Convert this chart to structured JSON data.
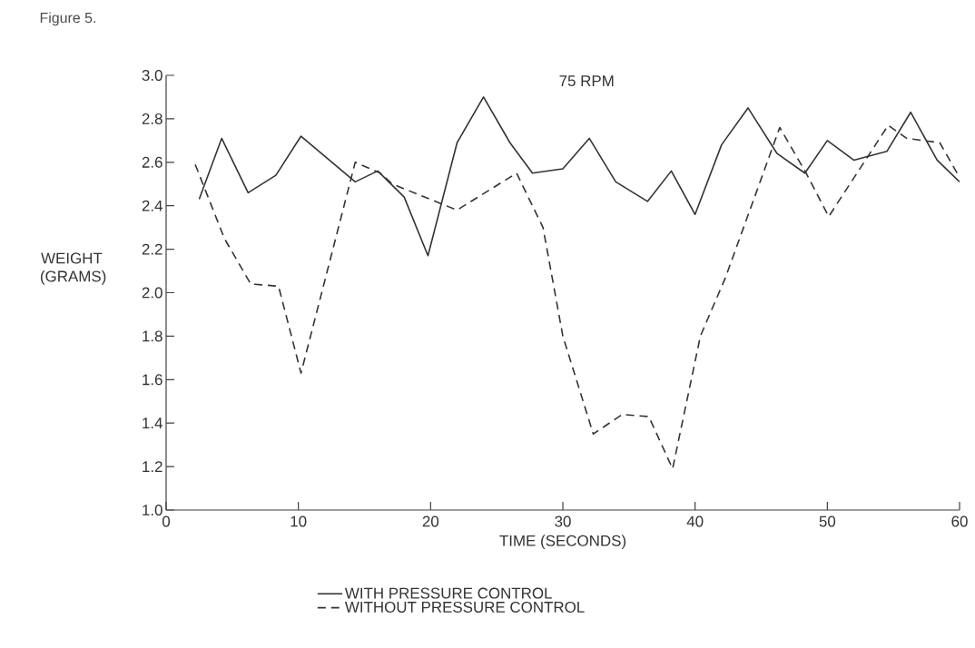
{
  "chart_data": {
    "type": "line",
    "title": "75 RPM",
    "xlabel": "TIME (SECONDS)",
    "ylabel": "WEIGHT (GRAMS)",
    "annotations": [
      "Figure 5."
    ],
    "xlim": [
      0,
      60
    ],
    "xticks": [
      0,
      10,
      20,
      30,
      40,
      50,
      60
    ],
    "ylim": [
      1.0,
      3.0
    ],
    "yticks": [
      {
        "value": 1.0,
        "label": "1.0"
      },
      {
        "value": 1.2,
        "label": "1.2"
      },
      {
        "value": 1.4,
        "label": "1.4"
      },
      {
        "value": 1.6,
        "label": "1.6"
      },
      {
        "value": 1.8,
        "label": "1.8"
      },
      {
        "value": 2.0,
        "label": "2.0"
      },
      {
        "value": 2.2,
        "label": "2.2"
      },
      {
        "value": 2.4,
        "label": "2.4"
      },
      {
        "value": 2.6,
        "label": "2.6"
      },
      {
        "value": 2.8,
        "label": "2.8"
      },
      {
        "value": 3.0,
        "label": "3.0"
      }
    ],
    "legend": "bottom",
    "grid": false,
    "series": [
      {
        "name": "WITH PRESSURE CONTROL",
        "color": "#333333",
        "line_style": "solid",
        "x": [
          2.5,
          4.2,
          6.2,
          8.3,
          10.2,
          14.3,
          16,
          18,
          19.8,
          22,
          24,
          26,
          27.7,
          30,
          32,
          34,
          36.4,
          38.2,
          40,
          42,
          44,
          46.2,
          48.3,
          50,
          52,
          54.5,
          56.3,
          58.3,
          60
        ],
        "values": [
          2.43,
          2.71,
          2.46,
          2.54,
          2.72,
          2.51,
          2.56,
          2.44,
          2.17,
          2.69,
          2.9,
          2.69,
          2.55,
          2.57,
          2.71,
          2.51,
          2.42,
          2.56,
          2.36,
          2.68,
          2.85,
          2.64,
          2.55,
          2.7,
          2.61,
          2.65,
          2.83,
          2.61,
          2.51
        ]
      },
      {
        "name": "WITHOUT PRESSURE CONTROL",
        "color": "#333333",
        "line_style": "dashed",
        "x": [
          2.2,
          4.4,
          6.4,
          8.5,
          10.2,
          14.3,
          16.2,
          17.1,
          22,
          26.5,
          28.5,
          30,
          32.3,
          34.5,
          36.5,
          38.3,
          40.4,
          42.3,
          46.4,
          48.4,
          50.1,
          54.6,
          56,
          58.5,
          60
        ],
        "values": [
          2.59,
          2.25,
          2.04,
          2.03,
          1.63,
          2.6,
          2.55,
          2.5,
          2.38,
          2.55,
          2.3,
          1.8,
          1.35,
          1.44,
          1.43,
          1.19,
          1.8,
          2.07,
          2.76,
          2.55,
          2.35,
          2.77,
          2.71,
          2.69,
          2.53
        ]
      }
    ]
  }
}
